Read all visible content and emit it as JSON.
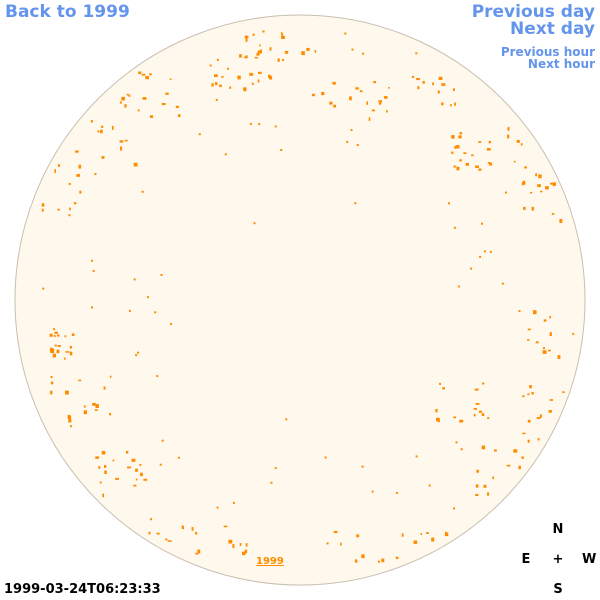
{
  "nav": {
    "back": "Back to 1999",
    "previous_day": "Previous day",
    "next_day": "Next day",
    "previous_hour": "Previous hour",
    "next_hour": "Next hour"
  },
  "compass": {
    "north": "N",
    "south": "S",
    "east": "E",
    "west": "W",
    "center": "+"
  },
  "timestamp": "1999-03-24T06:23:33",
  "disk_label": "1999",
  "colors": {
    "link": "#6495ed",
    "disk_fill": "#fff8ec",
    "disk_edge": "#c8c0b0",
    "contour": "#ff8c00"
  }
}
